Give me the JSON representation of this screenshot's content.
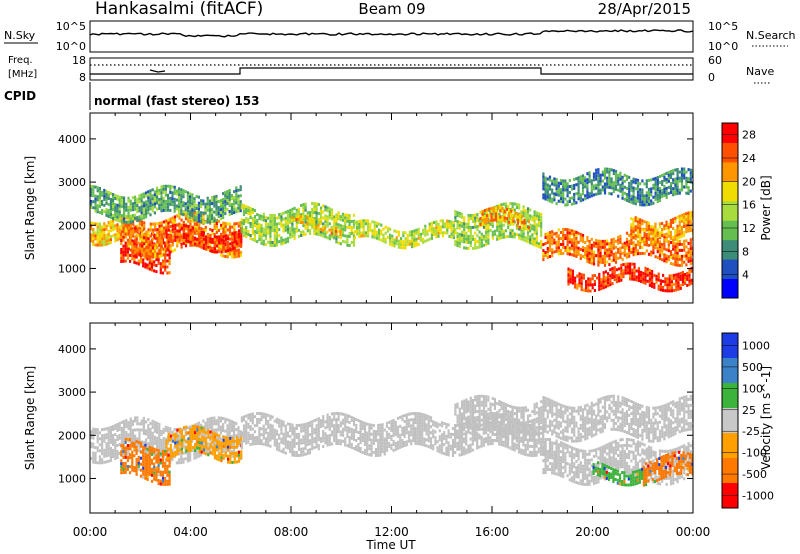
{
  "header": {
    "station": "Hankasalmi (fitACF)",
    "beam": "Beam 09",
    "date": "28/Apr/2015"
  },
  "sky_panel": {
    "left_label": "N.Sky",
    "left_ticks": [
      "10^5",
      "10^0"
    ],
    "right_label": "N.Search",
    "right_ticks": [
      "10^5",
      "10^0"
    ]
  },
  "freq_panel": {
    "left_label_1": "Freq.",
    "left_label_2": "[MHz]",
    "left_ticks": [
      "18",
      "8"
    ],
    "right_label": "Nave",
    "right_ticks": [
      "60",
      "0"
    ]
  },
  "cpid": {
    "label": "CPID",
    "text": "normal (fast stereo) 153"
  },
  "colors": {
    "power": [
      "#0000ff",
      "#2050c0",
      "#3c8c78",
      "#64be50",
      "#a8dc3c",
      "#f0dc00",
      "#ff9600",
      "#ff5000",
      "#ff0000"
    ],
    "velocity": [
      "#1e3ce6",
      "#3c82c8",
      "#3cb43c",
      "#c8c8c8",
      "#ffa000",
      "#ff7800",
      "#ff0000"
    ],
    "ground_scatter": "#c0c0c0"
  },
  "chart_data": [
    {
      "type": "heatmap",
      "name": "power",
      "xlabel": "",
      "ylabel": "Slant Range [km]",
      "ylim": [
        200,
        4600
      ],
      "xlim": [
        0,
        24
      ],
      "yticks": [
        1000,
        2000,
        3000,
        4000
      ],
      "colorbar": {
        "label": "Power [dB]",
        "ticks": [
          "4",
          "8",
          "12",
          "16",
          "20",
          "24",
          "28"
        ],
        "range": [
          0,
          30
        ]
      },
      "bands": [
        {
          "x0": 0.0,
          "x1": 1.5,
          "rmin": 1700,
          "rmax": 2200,
          "v": 20
        },
        {
          "x0": 1.2,
          "x1": 3.2,
          "rmin": 1000,
          "rmax": 1900,
          "v": 27
        },
        {
          "x0": 1.5,
          "x1": 6.0,
          "rmin": 1400,
          "rmax": 2200,
          "v": 24
        },
        {
          "x0": 3.0,
          "x1": 6.0,
          "rmin": 1500,
          "rmax": 1900,
          "v": 28
        },
        {
          "x0": 0.0,
          "x1": 6.0,
          "rmin": 2200,
          "rmax": 2800,
          "v": 10
        },
        {
          "x0": 6.0,
          "x1": 10.5,
          "rmin": 1700,
          "rmax": 2400,
          "v": 14
        },
        {
          "x0": 8.0,
          "x1": 10.0,
          "rmin": 1900,
          "rmax": 2100,
          "v": 20
        },
        {
          "x0": 10.5,
          "x1": 14.5,
          "rmin": 1600,
          "rmax": 2000,
          "v": 16
        },
        {
          "x0": 14.5,
          "x1": 18.0,
          "rmin": 1600,
          "rmax": 2400,
          "v": 14
        },
        {
          "x0": 15.5,
          "x1": 17.5,
          "rmin": 2000,
          "rmax": 2300,
          "v": 22
        },
        {
          "x0": 18.0,
          "x1": 24.0,
          "rmin": 1200,
          "rmax": 1800,
          "v": 25
        },
        {
          "x0": 19.0,
          "x1": 24.0,
          "rmin": 600,
          "rmax": 1000,
          "v": 28
        },
        {
          "x0": 21.5,
          "x1": 24.0,
          "rmin": 1700,
          "rmax": 2200,
          "v": 22
        },
        {
          "x0": 18.0,
          "x1": 24.0,
          "rmin": 2600,
          "rmax": 3200,
          "v": 8
        }
      ]
    },
    {
      "type": "heatmap",
      "name": "velocity",
      "xlabel": "Time UT",
      "ylabel": "Slant Range [km]",
      "ylim": [
        200,
        4600
      ],
      "xlim": [
        0,
        24
      ],
      "yticks": [
        1000,
        2000,
        3000,
        4000
      ],
      "xticks": [
        "00:00",
        "04:00",
        "08:00",
        "12:00",
        "16:00",
        "20:00",
        "00:00"
      ],
      "colorbar": {
        "label": "Velocity [m s^-1]",
        "ticks": [
          "1000",
          "500",
          "100",
          "25",
          "-25",
          "-100",
          "-500",
          "-1000"
        ]
      },
      "bands": [
        {
          "x0": 0.0,
          "x1": 6.0,
          "rmin": 1500,
          "rmax": 2300,
          "v": "gs"
        },
        {
          "x0": 1.2,
          "x1": 3.2,
          "rmin": 1000,
          "rmax": 1800,
          "v": "neg500"
        },
        {
          "x0": 3.0,
          "x1": 6.0,
          "rmin": 1500,
          "rmax": 2100,
          "v": "neg100"
        },
        {
          "x0": 6.0,
          "x1": 18.0,
          "rmin": 1700,
          "rmax": 2400,
          "v": "gs"
        },
        {
          "x0": 14.5,
          "x1": 18.0,
          "rmin": 2000,
          "rmax": 2800,
          "v": "gs"
        },
        {
          "x0": 18.0,
          "x1": 24.0,
          "rmin": 1000,
          "rmax": 1800,
          "v": "gs"
        },
        {
          "x0": 18.0,
          "x1": 24.0,
          "rmin": 2000,
          "rmax": 2800,
          "v": "gs"
        },
        {
          "x0": 22.0,
          "x1": 24.0,
          "rmin": 1000,
          "rmax": 1500,
          "v": "neg500"
        },
        {
          "x0": 20.0,
          "x1": 22.0,
          "rmin": 1000,
          "rmax": 1300,
          "v": "pos100"
        }
      ]
    }
  ]
}
